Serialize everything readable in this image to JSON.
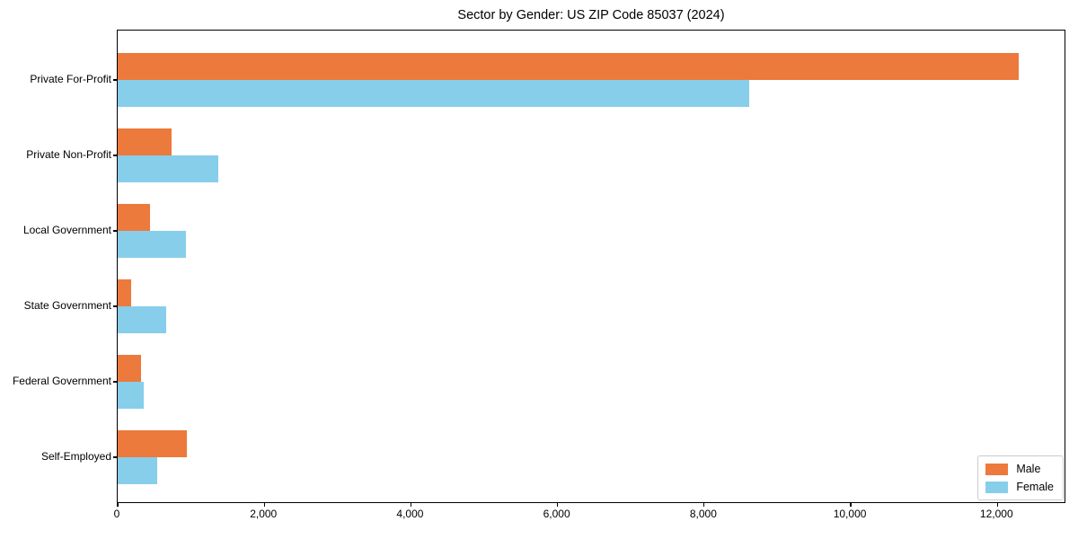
{
  "chart_data": {
    "type": "bar",
    "orientation": "horizontal",
    "grouped": true,
    "title": "Sector by Gender: US ZIP Code 85037 (2024)",
    "xlabel": "",
    "ylabel": "",
    "categories": [
      "Private For-Profit",
      "Private Non-Profit",
      "Local Government",
      "State Government",
      "Federal Government",
      "Self-Employed"
    ],
    "series": [
      {
        "name": "Male",
        "color": "#EC7A3C",
        "values": [
          12310,
          740,
          440,
          185,
          320,
          945
        ]
      },
      {
        "name": "Female",
        "color": "#87CEEB",
        "values": [
          8625,
          1375,
          930,
          660,
          355,
          535
        ]
      }
    ],
    "xlim": [
      0,
      12940
    ],
    "xticks": [
      0,
      2000,
      4000,
      6000,
      8000,
      10000,
      12000
    ],
    "xtick_labels": [
      "0",
      "2,000",
      "4,000",
      "6,000",
      "8,000",
      "10,000",
      "12,000"
    ],
    "grid": false,
    "legend_position": "lower right",
    "background_color": "#ffffff",
    "spine_color": "#000000"
  }
}
